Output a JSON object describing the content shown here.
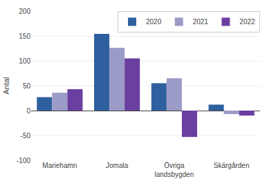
{
  "chart_data": {
    "type": "bar",
    "ylabel": "Antal",
    "categories": [
      "Mariehamn",
      "Jomala",
      "Övriga\nlandsbygden",
      "Skärgården"
    ],
    "series": [
      {
        "name": "2020",
        "color": "#2e5f9e",
        "values": [
          27,
          154,
          55,
          12
        ]
      },
      {
        "name": "2021",
        "color": "#9b9bc8",
        "values": [
          36,
          126,
          65,
          -7
        ]
      },
      {
        "name": "2022",
        "color": "#6b3fa0",
        "values": [
          43,
          105,
          -53,
          -10
        ]
      }
    ],
    "ylim": [
      -100,
      200
    ],
    "yticks": [
      -100,
      -50,
      0,
      50,
      100,
      150,
      200
    ],
    "grid": true,
    "legend": "upper right"
  }
}
